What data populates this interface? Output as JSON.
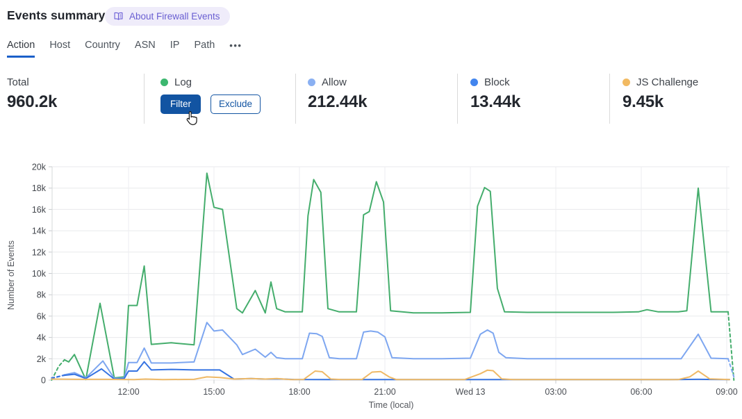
{
  "header": {
    "title": "Events summary",
    "about_badge": "About Firewall Events",
    "about_badge_icon": "book-icon"
  },
  "tabs": {
    "items": [
      {
        "label": "Action",
        "active": true
      },
      {
        "label": "Host",
        "active": false
      },
      {
        "label": "Country",
        "active": false
      },
      {
        "label": "ASN",
        "active": false
      },
      {
        "label": "IP",
        "active": false
      },
      {
        "label": "Path",
        "active": false
      }
    ],
    "more_label": "•••",
    "more_icon": "ellipsis-icon"
  },
  "stats": {
    "total": {
      "label": "Total",
      "value": "960.2k"
    },
    "log": {
      "label": "Log",
      "dot_color": "#3cb76f",
      "filter_label": "Filter",
      "exclude_label": "Exclude"
    },
    "allow": {
      "label": "Allow",
      "value": "212.44k",
      "dot_color": "#8ab0f2"
    },
    "block": {
      "label": "Block",
      "value": "13.44k",
      "dot_color": "#4285ee"
    },
    "js_challenge": {
      "label": "JS Challenge",
      "value": "9.45k",
      "dot_color": "#f2ba62"
    }
  },
  "cursor": {
    "icon": "hand-pointer-icon"
  },
  "chart_data": {
    "type": "line",
    "title": "",
    "xlabel": "Time (local)",
    "ylabel": "Number of Events",
    "value_unit": "thousands of events",
    "ylim": [
      0,
      20
    ],
    "grid": true,
    "legend_position": "top-stats-row",
    "y_ticks": [
      {
        "v": 0,
        "label": "0"
      },
      {
        "v": 2,
        "label": "2k"
      },
      {
        "v": 4,
        "label": "4k"
      },
      {
        "v": 6,
        "label": "6k"
      },
      {
        "v": 8,
        "label": "8k"
      },
      {
        "v": 10,
        "label": "10k"
      },
      {
        "v": 12,
        "label": "12k"
      },
      {
        "v": 14,
        "label": "14k"
      },
      {
        "v": 16,
        "label": "16k"
      },
      {
        "v": 18,
        "label": "18k"
      },
      {
        "v": 20,
        "label": "20k"
      }
    ],
    "x_ticks": [
      {
        "h": 12,
        "label": "12:00"
      },
      {
        "h": 15,
        "label": "15:00"
      },
      {
        "h": 18,
        "label": "18:00"
      },
      {
        "h": 21,
        "label": "21:00"
      },
      {
        "h": 24,
        "label": "Wed 13"
      },
      {
        "h": 27,
        "label": "03:00"
      },
      {
        "h": 30,
        "label": "06:00"
      },
      {
        "h": 33,
        "label": "09:00"
      }
    ],
    "x_range_hours": [
      9.3,
      33.25
    ],
    "series": [
      {
        "name": "Log",
        "color": "#44ad6c",
        "dash_head": 2,
        "dash_tail": 1,
        "points": [
          [
            9.3,
            0
          ],
          [
            9.55,
            1.3
          ],
          [
            9.75,
            1.9
          ],
          [
            9.9,
            1.7
          ],
          [
            10.1,
            2.4
          ],
          [
            10.5,
            0.05
          ],
          [
            11.0,
            7.2
          ],
          [
            11.5,
            0.2
          ],
          [
            11.85,
            0.3
          ],
          [
            12.0,
            7.0
          ],
          [
            12.3,
            7.0
          ],
          [
            12.55,
            10.7
          ],
          [
            12.8,
            3.35
          ],
          [
            13.5,
            3.5
          ],
          [
            14.3,
            3.3
          ],
          [
            14.75,
            19.4
          ],
          [
            15.0,
            16.2
          ],
          [
            15.3,
            16.0
          ],
          [
            15.8,
            6.7
          ],
          [
            16.0,
            6.3
          ],
          [
            16.45,
            8.4
          ],
          [
            16.8,
            6.3
          ],
          [
            17.0,
            9.2
          ],
          [
            17.2,
            6.7
          ],
          [
            17.5,
            6.4
          ],
          [
            18.1,
            6.4
          ],
          [
            18.3,
            15.4
          ],
          [
            18.5,
            18.8
          ],
          [
            18.75,
            17.6
          ],
          [
            19.0,
            6.7
          ],
          [
            19.4,
            6.4
          ],
          [
            20.0,
            6.4
          ],
          [
            20.25,
            15.5
          ],
          [
            20.45,
            15.8
          ],
          [
            20.7,
            18.6
          ],
          [
            20.95,
            16.7
          ],
          [
            21.2,
            6.5
          ],
          [
            22.0,
            6.3
          ],
          [
            23.0,
            6.3
          ],
          [
            24.0,
            6.35
          ],
          [
            24.25,
            16.3
          ],
          [
            24.5,
            18.05
          ],
          [
            24.7,
            17.7
          ],
          [
            24.95,
            8.6
          ],
          [
            25.2,
            6.4
          ],
          [
            26.0,
            6.35
          ],
          [
            27.0,
            6.35
          ],
          [
            28.0,
            6.35
          ],
          [
            29.0,
            6.35
          ],
          [
            29.9,
            6.4
          ],
          [
            30.2,
            6.6
          ],
          [
            30.6,
            6.4
          ],
          [
            31.3,
            6.4
          ],
          [
            31.6,
            6.5
          ],
          [
            32.0,
            18.0
          ],
          [
            32.45,
            6.4
          ],
          [
            33.05,
            6.4
          ],
          [
            33.25,
            0
          ]
        ]
      },
      {
        "name": "Allow",
        "color": "#7da6f0",
        "dash_head": 1,
        "dash_tail": 1,
        "points": [
          [
            9.3,
            0.1
          ],
          [
            9.75,
            0.5
          ],
          [
            10.1,
            0.7
          ],
          [
            10.5,
            0.2
          ],
          [
            11.1,
            1.8
          ],
          [
            11.5,
            0.15
          ],
          [
            11.85,
            0.2
          ],
          [
            12.0,
            1.65
          ],
          [
            12.3,
            1.65
          ],
          [
            12.55,
            3.0
          ],
          [
            12.8,
            1.6
          ],
          [
            13.5,
            1.6
          ],
          [
            14.3,
            1.7
          ],
          [
            14.75,
            5.4
          ],
          [
            15.0,
            4.6
          ],
          [
            15.3,
            4.7
          ],
          [
            15.8,
            3.3
          ],
          [
            16.0,
            2.4
          ],
          [
            16.45,
            2.9
          ],
          [
            16.8,
            2.15
          ],
          [
            17.0,
            2.6
          ],
          [
            17.2,
            2.1
          ],
          [
            17.5,
            2.0
          ],
          [
            18.1,
            2.0
          ],
          [
            18.35,
            4.4
          ],
          [
            18.6,
            4.35
          ],
          [
            18.8,
            4.1
          ],
          [
            19.05,
            2.1
          ],
          [
            19.4,
            2.0
          ],
          [
            20.0,
            2.0
          ],
          [
            20.25,
            4.5
          ],
          [
            20.5,
            4.6
          ],
          [
            20.75,
            4.5
          ],
          [
            21.0,
            4.05
          ],
          [
            21.25,
            2.1
          ],
          [
            22.0,
            2.0
          ],
          [
            23.0,
            2.0
          ],
          [
            24.0,
            2.05
          ],
          [
            24.35,
            4.3
          ],
          [
            24.6,
            4.7
          ],
          [
            24.8,
            4.4
          ],
          [
            25.0,
            2.6
          ],
          [
            25.25,
            2.1
          ],
          [
            26.0,
            2.0
          ],
          [
            27.0,
            2.0
          ],
          [
            28.0,
            2.0
          ],
          [
            29.0,
            2.0
          ],
          [
            30.0,
            2.0
          ],
          [
            31.4,
            2.0
          ],
          [
            32.0,
            4.3
          ],
          [
            32.45,
            2.05
          ],
          [
            33.05,
            2.0
          ],
          [
            33.25,
            0.3
          ]
        ]
      },
      {
        "name": "Block",
        "color": "#3673e2",
        "dash_head": 1,
        "dash_tail": 0,
        "points": [
          [
            9.3,
            0.2
          ],
          [
            9.75,
            0.45
          ],
          [
            10.1,
            0.55
          ],
          [
            10.5,
            0.15
          ],
          [
            11.05,
            1.05
          ],
          [
            11.5,
            0.1
          ],
          [
            11.85,
            0.15
          ],
          [
            12.0,
            0.85
          ],
          [
            12.3,
            0.85
          ],
          [
            12.55,
            1.72
          ],
          [
            12.8,
            0.95
          ],
          [
            13.5,
            1.0
          ],
          [
            14.3,
            0.95
          ],
          [
            15.2,
            0.95
          ],
          [
            15.7,
            0.1
          ],
          [
            16.3,
            0.15
          ],
          [
            16.8,
            0.1
          ],
          [
            17.3,
            0.12
          ],
          [
            17.8,
            0.06
          ],
          [
            19.0,
            0.05
          ],
          [
            21.0,
            0.05
          ],
          [
            23.0,
            0.05
          ],
          [
            25.0,
            0.05
          ],
          [
            27.0,
            0.05
          ],
          [
            29.0,
            0.05
          ],
          [
            31.0,
            0.05
          ],
          [
            32.0,
            0.07
          ],
          [
            33.1,
            0.05
          ]
        ]
      },
      {
        "name": "JS Challenge",
        "color": "#efb966",
        "dash_head": 0,
        "dash_tail": 0,
        "points": [
          [
            9.3,
            0.1
          ],
          [
            10.2,
            0.07
          ],
          [
            11.2,
            0.07
          ],
          [
            12.2,
            0.05
          ],
          [
            12.6,
            0.1
          ],
          [
            13.2,
            0.05
          ],
          [
            14.3,
            0.07
          ],
          [
            14.75,
            0.3
          ],
          [
            15.2,
            0.25
          ],
          [
            15.7,
            0.1
          ],
          [
            16.3,
            0.15
          ],
          [
            16.8,
            0.1
          ],
          [
            17.2,
            0.15
          ],
          [
            17.7,
            0.05
          ],
          [
            18.15,
            0.06
          ],
          [
            18.55,
            0.85
          ],
          [
            18.8,
            0.78
          ],
          [
            19.1,
            0.1
          ],
          [
            19.5,
            0.05
          ],
          [
            20.2,
            0.06
          ],
          [
            20.55,
            0.75
          ],
          [
            20.85,
            0.8
          ],
          [
            21.15,
            0.3
          ],
          [
            21.4,
            0.05
          ],
          [
            22.5,
            0.05
          ],
          [
            23.8,
            0.05
          ],
          [
            24.35,
            0.6
          ],
          [
            24.6,
            0.93
          ],
          [
            24.8,
            0.88
          ],
          [
            25.1,
            0.12
          ],
          [
            25.5,
            0.05
          ],
          [
            27.0,
            0.05
          ],
          [
            29.0,
            0.05
          ],
          [
            31.3,
            0.05
          ],
          [
            31.7,
            0.3
          ],
          [
            32.0,
            0.85
          ],
          [
            32.4,
            0.12
          ],
          [
            33.1,
            0.05
          ]
        ]
      }
    ]
  }
}
